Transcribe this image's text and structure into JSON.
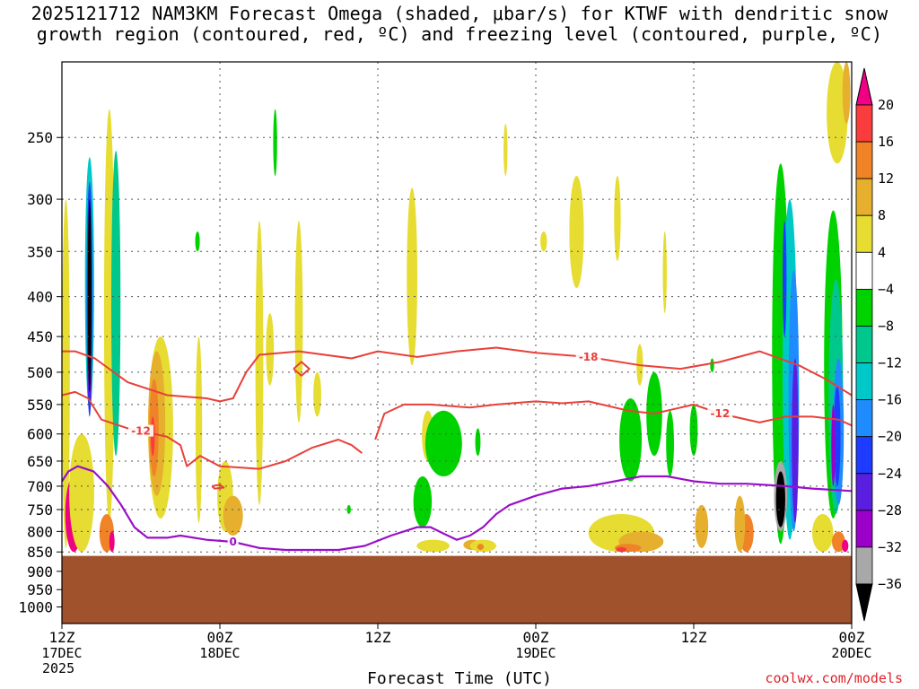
{
  "title_line1": "2025121712 NAM3KM Forecast Omega (shaded, μbar/s) for KTWF with dendritic snow",
  "title_line2": "growth region (contoured, red, ºC) and freezing level (contoured, purple, ºC)",
  "xlabel": "Forecast Time (UTC)",
  "credit": "coolwx.com/models",
  "chart_data": {
    "type": "heatmap",
    "title": "2025121712 NAM3KM Forecast Omega (shaded, μbar/s) for KTWF with dendritic snow growth region (contoured, red, ºC) and freezing level (contoured, purple, ºC)",
    "xlabel": "Forecast Time (UTC)",
    "ylabel": "",
    "x_range_hours": [
      0,
      60
    ],
    "y_range_hpa": [
      200,
      1050
    ],
    "y_scale": "log-pressure (reversed)",
    "grid": true,
    "y_ticks": [
      250,
      300,
      350,
      400,
      450,
      500,
      550,
      600,
      650,
      700,
      750,
      800,
      850,
      900,
      950,
      1000
    ],
    "x_ticks": [
      {
        "hour": 0,
        "lines": [
          "12Z",
          "17DEC",
          "2025"
        ]
      },
      {
        "hour": 12,
        "lines": [
          "00Z",
          "18DEC"
        ]
      },
      {
        "hour": 24,
        "lines": [
          "12Z"
        ]
      },
      {
        "hour": 36,
        "lines": [
          "00Z",
          "19DEC"
        ]
      },
      {
        "hour": 48,
        "lines": [
          "12Z"
        ]
      },
      {
        "hour": 60,
        "lines": [
          "00Z",
          "20DEC"
        ]
      }
    ],
    "colorbar": {
      "levels": [
        -36,
        -32,
        -28,
        -24,
        -20,
        -16,
        -12,
        -8,
        -4,
        4,
        8,
        12,
        16,
        20
      ],
      "colors": [
        "#000000",
        "#a8a8a8",
        "#9a00c8",
        "#5a1ee0",
        "#1e3cff",
        "#1e8cff",
        "#00c8c8",
        "#00c88c",
        "#00d200",
        "#ffffff",
        "#e6dc32",
        "#e6af2d",
        "#f08228",
        "#fa3c3c",
        "#f00082"
      ]
    },
    "terrain_top_hpa": 860,
    "terrain_color": "#a0522d",
    "omega_regions": [
      {
        "value": 6,
        "t": 0.3,
        "p": [
          300,
          840
        ],
        "w": 0.6
      },
      {
        "value": 6,
        "t": 3.6,
        "p": [
          230,
          780
        ],
        "w": 0.8
      },
      {
        "value": -10,
        "t": 4.1,
        "p": [
          260,
          640
        ],
        "w": 0.7
      },
      {
        "value": -14,
        "t": 2.1,
        "p": [
          265,
          560
        ],
        "w": 0.7
      },
      {
        "value": -22,
        "t": 2.1,
        "p": [
          285,
          570
        ],
        "w": 0.45
      },
      {
        "value": -30,
        "t": 2.1,
        "p": [
          305,
          550
        ],
        "w": 0.3
      },
      {
        "value": -38,
        "t": 2.1,
        "p": [
          300,
          530
        ],
        "w": 0.2
      },
      {
        "value": 22,
        "t": 0.9,
        "p": [
          680,
          850
        ],
        "w": 1.3
      },
      {
        "value": 6,
        "t": 1.5,
        "p": [
          600,
          850
        ],
        "w": 1.9
      },
      {
        "value": 14,
        "t": 3.4,
        "p": [
          760,
          850
        ],
        "w": 1.1
      },
      {
        "value": 22,
        "t": 3.8,
        "p": [
          800,
          850
        ],
        "w": 0.4
      },
      {
        "value": 6,
        "t": 7.5,
        "p": [
          450,
          770
        ],
        "w": 1.9
      },
      {
        "value": 10,
        "t": 7.2,
        "p": [
          470,
          720
        ],
        "w": 1.3
      },
      {
        "value": 14,
        "t": 7.0,
        "p": [
          510,
          680
        ],
        "w": 0.7
      },
      {
        "value": 18,
        "t": 6.9,
        "p": [
          570,
          640
        ],
        "w": 0.3
      },
      {
        "value": 6,
        "t": 10.4,
        "p": [
          450,
          780
        ],
        "w": 0.5
      },
      {
        "value": -6,
        "t": 10.3,
        "p": [
          330,
          350
        ],
        "w": 0.35
      },
      {
        "value": 6,
        "t": 12.4,
        "p": [
          650,
          800
        ],
        "w": 1.2
      },
      {
        "value": 10,
        "t": 13.0,
        "p": [
          720,
          810
        ],
        "w": 1.5
      },
      {
        "value": 6,
        "t": 15.0,
        "p": [
          320,
          740
        ],
        "w": 0.6
      },
      {
        "value": 6,
        "t": 15.8,
        "p": [
          420,
          520
        ],
        "w": 0.6
      },
      {
        "value": 6,
        "t": 18.0,
        "p": [
          320,
          580
        ],
        "w": 0.6
      },
      {
        "value": -6,
        "t": 16.2,
        "p": [
          230,
          280
        ],
        "w": 0.3
      },
      {
        "value": 6,
        "t": 19.4,
        "p": [
          500,
          570
        ],
        "w": 0.6
      },
      {
        "value": -6,
        "t": 21.8,
        "p": [
          740,
          760
        ],
        "w": 0.3
      },
      {
        "value": 6,
        "t": 26.6,
        "p": [
          290,
          490
        ],
        "w": 0.8
      },
      {
        "value": 6,
        "t": 27.8,
        "p": [
          560,
          650
        ],
        "w": 0.9
      },
      {
        "value": -6,
        "t": 29.0,
        "p": [
          560,
          680
        ],
        "w": 2.8
      },
      {
        "value": -6,
        "t": 27.4,
        "p": [
          680,
          790
        ],
        "w": 1.4
      },
      {
        "value": 6,
        "t": 28.2,
        "p": [
          820,
          850
        ],
        "w": 2.5
      },
      {
        "value": 10,
        "t": 31.2,
        "p": [
          820,
          845
        ],
        "w": 1.4
      },
      {
        "value": 6,
        "t": 32.0,
        "p": [
          820,
          850
        ],
        "w": 2.0
      },
      {
        "value": 14,
        "t": 31.8,
        "p": [
          830,
          845
        ],
        "w": 0.5
      },
      {
        "value": 6,
        "t": 33.7,
        "p": [
          240,
          280
        ],
        "w": 0.3
      },
      {
        "value": -6,
        "t": 31.6,
        "p": [
          590,
          640
        ],
        "w": 0.4
      },
      {
        "value": 6,
        "t": 36.6,
        "p": [
          330,
          350
        ],
        "w": 0.5
      },
      {
        "value": 6,
        "t": 39.1,
        "p": [
          280,
          390
        ],
        "w": 1.1
      },
      {
        "value": 6,
        "t": 42.2,
        "p": [
          280,
          360
        ],
        "w": 0.5
      },
      {
        "value": 6,
        "t": 43.9,
        "p": [
          460,
          520
        ],
        "w": 0.5
      },
      {
        "value": -6,
        "t": 43.2,
        "p": [
          540,
          690
        ],
        "w": 1.7
      },
      {
        "value": -6,
        "t": 45.0,
        "p": [
          500,
          640
        ],
        "w": 1.2
      },
      {
        "value": -6,
        "t": 46.2,
        "p": [
          560,
          680
        ],
        "w": 0.6
      },
      {
        "value": -6,
        "t": 48.0,
        "p": [
          550,
          640
        ],
        "w": 0.6
      },
      {
        "value": 6,
        "t": 45.8,
        "p": [
          330,
          420
        ],
        "w": 0.3
      },
      {
        "value": -6,
        "t": 49.4,
        "p": [
          480,
          500
        ],
        "w": 0.3
      },
      {
        "value": 6,
        "t": 42.5,
        "p": [
          760,
          850
        ],
        "w": 5.0
      },
      {
        "value": 10,
        "t": 44.0,
        "p": [
          800,
          850
        ],
        "w": 3.4
      },
      {
        "value": 14,
        "t": 43.0,
        "p": [
          830,
          850
        ],
        "w": 2.0
      },
      {
        "value": 18,
        "t": 42.5,
        "p": [
          838,
          850
        ],
        "w": 0.8
      },
      {
        "value": 10,
        "t": 48.6,
        "p": [
          740,
          840
        ],
        "w": 1.0
      },
      {
        "value": 14,
        "t": 52.0,
        "p": [
          760,
          850
        ],
        "w": 1.1
      },
      {
        "value": 10,
        "t": 51.5,
        "p": [
          720,
          850
        ],
        "w": 0.8
      },
      {
        "value": -8,
        "t": 54.6,
        "p": [
          270,
          830
        ],
        "w": 1.3
      },
      {
        "value": -14,
        "t": 55.3,
        "p": [
          300,
          820
        ],
        "w": 1.1
      },
      {
        "value": -18,
        "t": 55.6,
        "p": [
          370,
          800
        ],
        "w": 0.8
      },
      {
        "value": -26,
        "t": 55.7,
        "p": [
          480,
          780
        ],
        "w": 0.5
      },
      {
        "value": -22,
        "t": 54.9,
        "p": [
          320,
          450
        ],
        "w": 0.3
      },
      {
        "value": -8,
        "t": 58.6,
        "p": [
          310,
          770
        ],
        "w": 1.4
      },
      {
        "value": -12,
        "t": 58.8,
        "p": [
          380,
          760
        ],
        "w": 1.1
      },
      {
        "value": -18,
        "t": 59.0,
        "p": [
          480,
          740
        ],
        "w": 0.8
      },
      {
        "value": -22,
        "t": 58.9,
        "p": [
          520,
          700
        ],
        "w": 0.5
      },
      {
        "value": -30,
        "t": 58.6,
        "p": [
          550,
          700
        ],
        "w": 0.3
      },
      {
        "value": -34,
        "t": 54.6,
        "p": [
          650,
          800
        ],
        "w": 1.0
      },
      {
        "value": -38,
        "t": 54.6,
        "p": [
          670,
          790
        ],
        "w": 0.7
      },
      {
        "value": 6,
        "t": 57.8,
        "p": [
          760,
          850
        ],
        "w": 1.6
      },
      {
        "value": 14,
        "t": 59.0,
        "p": [
          800,
          850
        ],
        "w": 1.0
      },
      {
        "value": 22,
        "t": 59.5,
        "p": [
          820,
          850
        ],
        "w": 0.5
      },
      {
        "value": 6,
        "t": 58.9,
        "p": [
          200,
          270
        ],
        "w": 1.6
      },
      {
        "value": 10,
        "t": 59.6,
        "p": [
          200,
          240
        ],
        "w": 0.6
      }
    ],
    "dgz_contours": [
      {
        "label": "-18",
        "points": [
          [
            0,
            470
          ],
          [
            1,
            470
          ],
          [
            2.5,
            480
          ],
          [
            5,
            515
          ],
          [
            8,
            535
          ],
          [
            11,
            540
          ],
          [
            12,
            545
          ],
          [
            13,
            540
          ],
          [
            14,
            500
          ],
          [
            15,
            475
          ],
          [
            18,
            470
          ],
          [
            22,
            480
          ],
          [
            24,
            470
          ],
          [
            27,
            478
          ],
          [
            30,
            470
          ],
          [
            33,
            465
          ],
          [
            36,
            472
          ],
          [
            40,
            478
          ],
          [
            44,
            490
          ],
          [
            47,
            495
          ],
          [
            50,
            485
          ],
          [
            53,
            470
          ],
          [
            56,
            490
          ],
          [
            58,
            510
          ],
          [
            60,
            535
          ]
        ]
      },
      {
        "label": "-12",
        "points": [
          [
            0,
            535
          ],
          [
            1,
            530
          ],
          [
            2,
            540
          ],
          [
            3,
            575
          ],
          [
            5,
            590
          ],
          [
            6,
            595
          ],
          [
            8,
            605
          ],
          [
            9,
            620
          ],
          [
            9.5,
            660
          ],
          [
            10.5,
            640
          ],
          [
            12,
            660
          ],
          [
            15,
            665
          ],
          [
            17,
            650
          ],
          [
            19,
            625
          ],
          [
            21,
            610
          ],
          [
            22,
            620
          ],
          [
            22.8,
            635
          ]
        ]
      },
      {
        "label": "-12",
        "points": [
          [
            23.8,
            610
          ],
          [
            24.5,
            565
          ],
          [
            26,
            550
          ],
          [
            28,
            550
          ],
          [
            31,
            555
          ],
          [
            33,
            550
          ],
          [
            36,
            545
          ],
          [
            38,
            548
          ],
          [
            40,
            545
          ],
          [
            43,
            560
          ],
          [
            45,
            565
          ],
          [
            47,
            555
          ],
          [
            48,
            550
          ],
          [
            50,
            565
          ],
          [
            53,
            580
          ],
          [
            55,
            570
          ],
          [
            57,
            570
          ],
          [
            59,
            575
          ],
          [
            60,
            585
          ]
        ]
      },
      {
        "label": "",
        "points": [
          [
            17.6,
            495
          ],
          [
            18.2,
            485
          ],
          [
            18.8,
            495
          ],
          [
            18.2,
            505
          ],
          [
            17.6,
            495
          ]
        ]
      },
      {
        "label": "",
        "points": [
          [
            11.4,
            700
          ],
          [
            12.0,
            697
          ],
          [
            12.3,
            703
          ],
          [
            11.6,
            705
          ],
          [
            11.4,
            700
          ]
        ]
      }
    ],
    "freezing_contours": [
      {
        "label": "0",
        "points": [
          [
            0,
            690
          ],
          [
            0.5,
            670
          ],
          [
            1.2,
            660
          ],
          [
            2.4,
            670
          ],
          [
            3.5,
            700
          ],
          [
            4.5,
            740
          ],
          [
            5.5,
            790
          ],
          [
            6.5,
            815
          ],
          [
            8,
            815
          ],
          [
            9,
            810
          ],
          [
            11,
            820
          ],
          [
            13,
            825
          ],
          [
            15,
            840
          ],
          [
            17,
            845
          ],
          [
            19,
            845
          ],
          [
            21,
            845
          ],
          [
            23,
            835
          ],
          [
            25,
            810
          ],
          [
            27,
            790
          ],
          [
            28,
            790
          ],
          [
            29,
            805
          ],
          [
            30,
            820
          ],
          [
            31,
            810
          ],
          [
            32,
            790
          ],
          [
            33,
            760
          ],
          [
            34,
            740
          ],
          [
            36,
            720
          ],
          [
            38,
            705
          ],
          [
            40,
            700
          ],
          [
            42,
            690
          ],
          [
            44,
            680
          ],
          [
            46,
            680
          ],
          [
            48,
            690
          ],
          [
            50,
            695
          ],
          [
            52,
            695
          ],
          [
            55,
            700
          ],
          [
            57,
            705
          ],
          [
            60,
            710
          ]
        ]
      }
    ]
  }
}
